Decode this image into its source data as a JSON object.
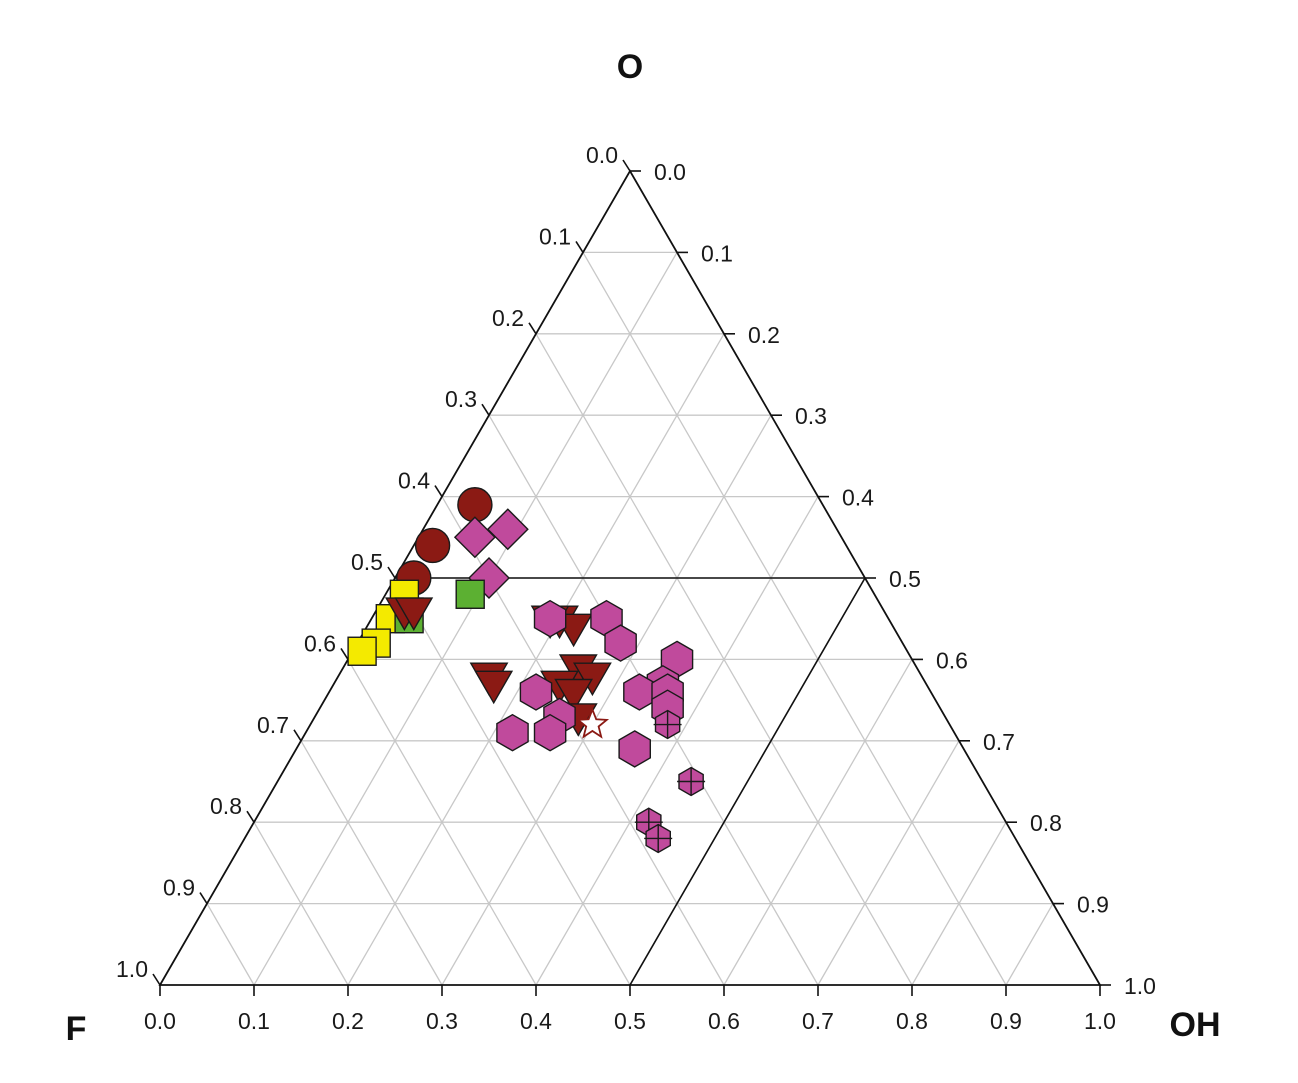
{
  "chart_data": {
    "type": "scatter",
    "subtype": "ternary",
    "title": "",
    "corners": {
      "top": "O",
      "left": "F",
      "right": "OH"
    },
    "grid": true,
    "grid_step": 0.1,
    "ticks": [
      "0.0",
      "0.1",
      "0.2",
      "0.3",
      "0.4",
      "0.5",
      "0.6",
      "0.7",
      "0.8",
      "0.9",
      "1.0"
    ],
    "dividers": [
      {
        "from": {
          "O": 0.5,
          "OH": 0.0
        },
        "to": {
          "O": 0.5,
          "OH": 0.5
        }
      },
      {
        "from": {
          "O": 0.5,
          "OH": 0.5
        },
        "to": {
          "O": 0.0,
          "OH": 0.5
        }
      }
    ],
    "colors": {
      "axis": "#111111",
      "grid": "#c8c8c8",
      "dark_red": "#8b1a14",
      "magenta": "#c04a9c",
      "yellow": "#f4ea00",
      "green": "#5cb032",
      "outline": "#1a1a1a"
    },
    "series": [
      {
        "marker": "circle",
        "color": "#8b1a14",
        "points": [
          {
            "OH": 0.04,
            "O": 0.59
          },
          {
            "OH": 0.02,
            "O": 0.54
          },
          {
            "OH": 0.02,
            "O": 0.5
          }
        ]
      },
      {
        "marker": "diamond",
        "color": "#c04a9c",
        "points": [
          {
            "OH": 0.09,
            "O": 0.56
          },
          {
            "OH": 0.06,
            "O": 0.55
          },
          {
            "OH": 0.1,
            "O": 0.5
          }
        ]
      },
      {
        "marker": "square",
        "color": "#f4ea00",
        "points": [
          {
            "OH": 0.02,
            "O": 0.48
          },
          {
            "OH": 0.02,
            "O": 0.45
          },
          {
            "OH": 0.02,
            "O": 0.42
          },
          {
            "OH": 0.01,
            "O": 0.41
          }
        ]
      },
      {
        "marker": "square",
        "color": "#5cb032",
        "points": [
          {
            "OH": 0.09,
            "O": 0.48
          },
          {
            "OH": 0.04,
            "O": 0.45
          }
        ]
      },
      {
        "marker": "triangle-down",
        "color": "#8b1a14",
        "points": [
          {
            "OH": 0.03,
            "O": 0.46
          },
          {
            "OH": 0.04,
            "O": 0.46
          },
          {
            "OH": 0.2,
            "O": 0.45
          },
          {
            "OH": 0.19,
            "O": 0.45
          },
          {
            "OH": 0.22,
            "O": 0.44
          },
          {
            "OH": 0.16,
            "O": 0.38
          },
          {
            "OH": 0.17,
            "O": 0.37
          },
          {
            "OH": 0.25,
            "O": 0.39
          },
          {
            "OH": 0.27,
            "O": 0.38
          },
          {
            "OH": 0.24,
            "O": 0.37
          },
          {
            "OH": 0.26,
            "O": 0.36
          },
          {
            "OH": 0.28,
            "O": 0.33
          }
        ]
      },
      {
        "marker": "hexagon",
        "color": "#c04a9c",
        "points": [
          {
            "OH": 0.19,
            "O": 0.45
          },
          {
            "OH": 0.25,
            "O": 0.45
          },
          {
            "OH": 0.28,
            "O": 0.42
          },
          {
            "OH": 0.35,
            "O": 0.4
          },
          {
            "OH": 0.22,
            "O": 0.36
          },
          {
            "OH": 0.35,
            "O": 0.37
          },
          {
            "OH": 0.33,
            "O": 0.36
          },
          {
            "OH": 0.36,
            "O": 0.36
          },
          {
            "OH": 0.26,
            "O": 0.33
          },
          {
            "OH": 0.26,
            "O": 0.31
          },
          {
            "OH": 0.22,
            "O": 0.31
          },
          {
            "OH": 0.37,
            "O": 0.34
          },
          {
            "OH": 0.36,
            "O": 0.29
          }
        ]
      },
      {
        "marker": "hexagon-cross",
        "color": "#c04a9c",
        "points": [
          {
            "OH": 0.38,
            "O": 0.32
          },
          {
            "OH": 0.44,
            "O": 0.25
          },
          {
            "OH": 0.42,
            "O": 0.2
          },
          {
            "OH": 0.44,
            "O": 0.18
          }
        ]
      },
      {
        "marker": "star-open",
        "color": "#8b1a14",
        "points": [
          {
            "OH": 0.3,
            "O": 0.32
          }
        ]
      }
    ]
  }
}
